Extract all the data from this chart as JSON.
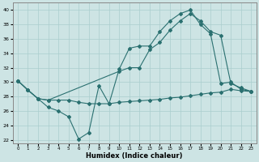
{
  "xlabel": "Humidex (Indice chaleur)",
  "xlim": [
    -0.5,
    23.5
  ],
  "ylim": [
    21.5,
    41.0
  ],
  "yticks": [
    22,
    24,
    26,
    28,
    30,
    32,
    34,
    36,
    38,
    40
  ],
  "xticks": [
    0,
    1,
    2,
    3,
    4,
    5,
    6,
    7,
    8,
    9,
    10,
    11,
    12,
    13,
    14,
    15,
    16,
    17,
    18,
    19,
    20,
    21,
    22,
    23
  ],
  "bg_color": "#cde4e4",
  "grid_color": "#aacece",
  "line_color": "#2a7070",
  "line1_x": [
    0,
    1,
    2,
    3,
    4,
    5,
    6,
    7,
    8,
    9,
    10,
    11,
    12,
    13,
    14,
    15,
    16,
    17,
    18,
    19,
    20,
    21,
    22,
    23
  ],
  "line1_y": [
    30.2,
    28.9,
    27.7,
    27.5,
    27.5,
    27.5,
    27.2,
    27.0,
    27.0,
    27.0,
    27.2,
    27.3,
    27.4,
    27.5,
    27.6,
    27.8,
    27.9,
    28.1,
    28.3,
    28.5,
    28.6,
    29.0,
    28.8,
    28.7
  ],
  "line2_x": [
    0,
    1,
    2,
    3,
    4,
    5,
    6,
    7,
    8,
    9,
    10,
    11,
    12,
    13,
    14,
    15,
    16,
    17,
    18,
    19,
    20,
    21,
    22,
    23
  ],
  "line2_y": [
    30.2,
    28.9,
    27.7,
    26.5,
    26.0,
    25.2,
    22.1,
    23.0,
    29.5,
    27.0,
    31.8,
    34.7,
    35.0,
    35.0,
    37.0,
    38.5,
    39.5,
    40.0,
    38.0,
    36.7,
    29.8,
    30.0,
    29.0,
    28.7
  ],
  "line3_x": [
    0,
    1,
    2,
    3,
    10,
    11,
    12,
    13,
    14,
    15,
    16,
    17,
    18,
    19,
    20,
    21,
    22,
    23
  ],
  "line3_y": [
    30.2,
    28.9,
    27.7,
    27.5,
    31.5,
    32.0,
    32.0,
    34.5,
    35.5,
    37.2,
    38.5,
    39.5,
    38.5,
    37.0,
    36.5,
    29.8,
    29.2,
    28.7
  ]
}
